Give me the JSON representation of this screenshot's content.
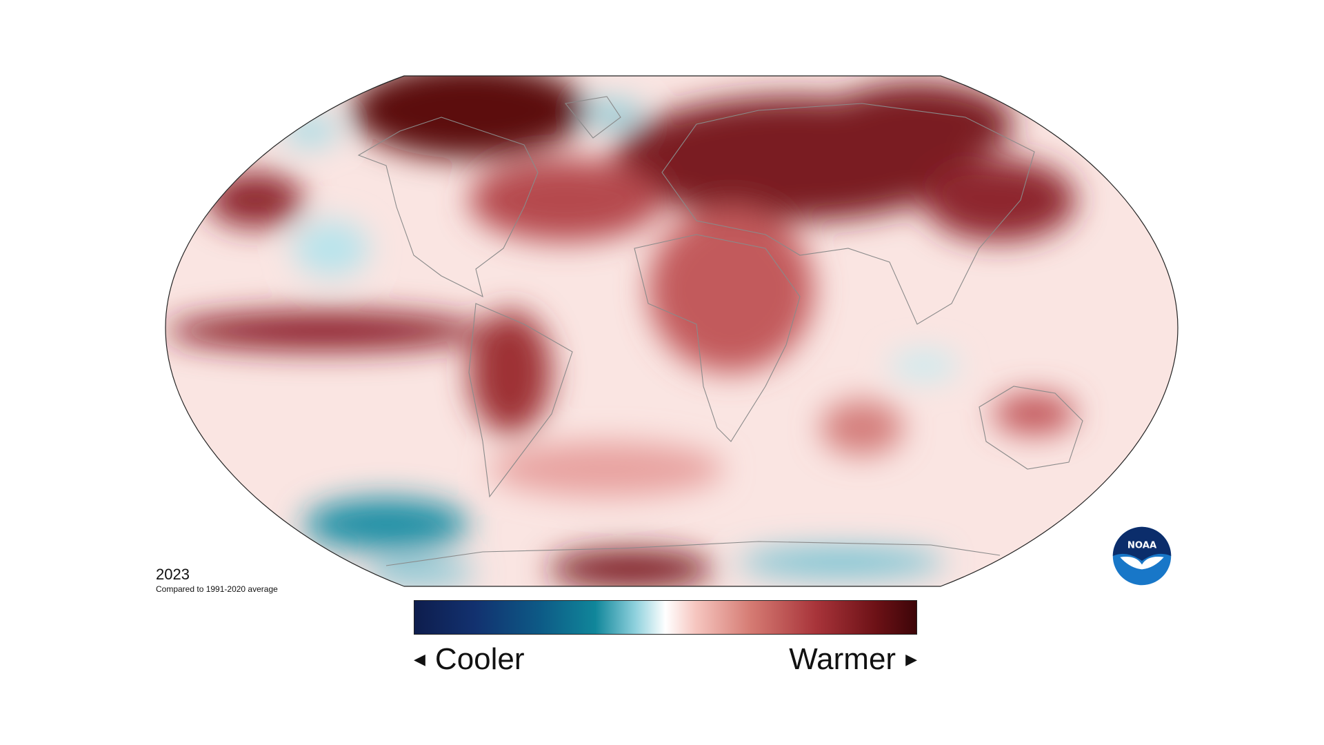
{
  "caption": {
    "year": "2023",
    "subtitle": "Compared to 1991-2020 average"
  },
  "legend": {
    "left_label": "Cooler",
    "right_label": "Warmer",
    "left_arrow": "◀",
    "right_arrow": "▶",
    "colors": [
      "#0e1d4d",
      "#12316f",
      "#0d5a86",
      "#10869a",
      "#8fd1dd",
      "#ffffff",
      "#f6c6c0",
      "#d57b73",
      "#a8343a",
      "#6c1116",
      "#3d0508"
    ]
  },
  "logo": {
    "text": "NOAA",
    "icon": "noaa-logo"
  },
  "map": {
    "projection": "robinson",
    "anomaly_colors": {
      "strong_warm": "#6e0d14",
      "warm": "#b14349",
      "mild_warm": "#e8a6a1",
      "light_warm": "#f7dcd8",
      "neutral": "#fdf3f1",
      "cool": "#a9dde6",
      "strong_cool": "#1e8ea4",
      "coastline": "#8a8a8a"
    }
  }
}
